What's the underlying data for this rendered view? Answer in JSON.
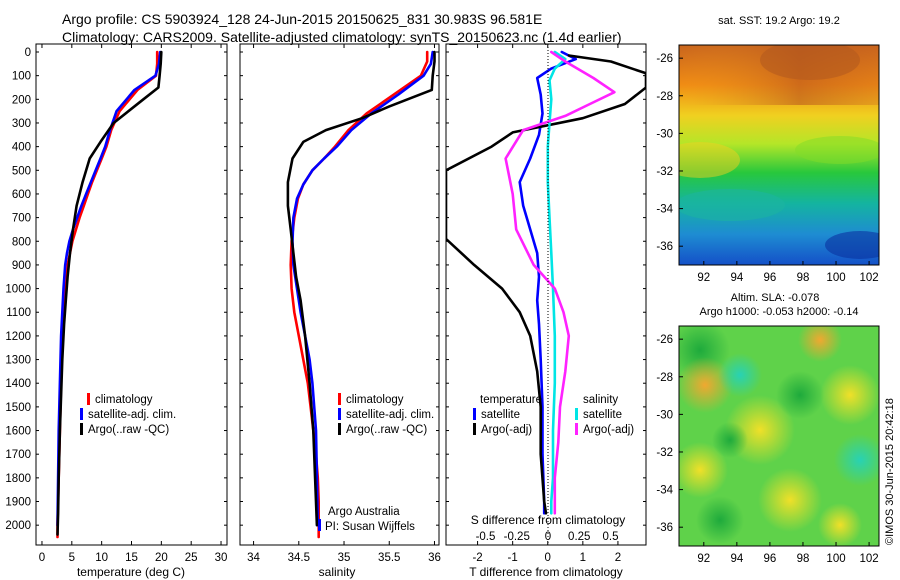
{
  "title": {
    "line1": "Argo profile: CS 5903924_128 24-Jun-2015 20150625_831 30.983S 96.581E",
    "line2": "Climatology: CARS2009. Satellite-adjusted climatology: synTS_20150623.nc (1.4d earlier)"
  },
  "colors": {
    "climatology": "#ff0000",
    "satellite": "#0000ff",
    "argo": "#000000",
    "sal_satellite": "#00e5e5",
    "sal_argo": "#ff22ff"
  },
  "depth_ticks": [
    "0",
    "100",
    "200",
    "300",
    "400",
    "500",
    "600",
    "700",
    "800",
    "900",
    "1000",
    "1100",
    "1200",
    "1300",
    "1400",
    "1500",
    "1600",
    "1700",
    "1800",
    "1900",
    "2000"
  ],
  "panels": {
    "temperature": {
      "xlabel": "temperature (deg C)",
      "xticks": [
        "0",
        "5",
        "10",
        "15",
        "20",
        "25",
        "30"
      ],
      "legend": [
        "climatology",
        "satellite-adj. clim.",
        "Argo(..raw -QC)"
      ]
    },
    "salinity": {
      "xlabel": "salinity",
      "xticks": [
        "34",
        "34.5",
        "35",
        "35.5",
        "36"
      ],
      "legend": [
        "climatology",
        "satellite-adj. clim.",
        "Argo(..raw -QC)"
      ],
      "credit1": "Argo Australia",
      "credit2": "PI: Susan Wijffels"
    },
    "difference": {
      "xlabel": "T difference from climatology",
      "xticks": [
        "-2",
        "-1",
        "0",
        "1",
        "2"
      ],
      "s_title": "S difference from climatology",
      "s_ticks": [
        "-0.5",
        "-0.25",
        "0",
        "0.25",
        "0.5"
      ],
      "legend_t_head": "temperature",
      "legend_s_head": "salinity",
      "legend_t": [
        "satellite",
        "Argo(-adj)"
      ],
      "legend_s": [
        "satellite",
        "Argo(-adj)"
      ]
    }
  },
  "maps": {
    "sst_title": "sat. SST: 19.2 Argo: 19.2",
    "sla_title1": "Altim. SLA: -0.078",
    "sla_title2": "Argo h1000: -0.053 h2000: -0.14",
    "yticks": [
      "-26",
      "-28",
      "-30",
      "-32",
      "-34",
      "-36"
    ],
    "xticks": [
      "92",
      "94",
      "96",
      "98",
      "100",
      "102"
    ],
    "stamp": "©IMOS 30-Jun-2015 20:42:18"
  },
  "chart_data": [
    {
      "type": "line",
      "title": "temperature",
      "xlabel": "temperature (deg C)",
      "ylabel": "",
      "xlim": [
        -1,
        31
      ],
      "ylim": [
        2070,
        0
      ],
      "series": [
        {
          "name": "climatology",
          "x": [
            19.3,
            19.3,
            19.1,
            16,
            13,
            11.6,
            10.8,
            10,
            9.2,
            8.4,
            7.7,
            7.0,
            6.3,
            5.7,
            5.1,
            4.7,
            4.3,
            4.0,
            3.7,
            3.4,
            3.2,
            3.0,
            2.8,
            2.6,
            2.6
          ],
          "y": [
            0,
            50,
            100,
            160,
            250,
            330,
            400,
            450,
            500,
            550,
            600,
            650,
            700,
            750,
            800,
            850,
            900,
            1000,
            1100,
            1200,
            1400,
            1600,
            1800,
            2000,
            2050
          ]
        },
        {
          "name": "satellite-adj. clim.",
          "x": [
            19.8,
            19.6,
            19,
            15.5,
            12.5,
            11.4,
            10.6,
            9.8,
            9.0,
            8.2,
            7.4,
            6.6,
            5.9,
            5.2,
            4.6,
            4.2,
            3.9,
            3.6,
            3.4,
            3.2,
            3.0,
            2.8,
            2.7,
            2.6
          ],
          "y": [
            0,
            50,
            100,
            160,
            250,
            330,
            400,
            450,
            500,
            550,
            600,
            650,
            700,
            750,
            800,
            850,
            900,
            1000,
            1100,
            1200,
            1400,
            1600,
            1800,
            2000
          ]
        },
        {
          "name": "Argo(..raw -QC)",
          "x": [
            20,
            19.9,
            19.7,
            19.5,
            17,
            12,
            9.8,
            8.0,
            6.8,
            5.8,
            5.2,
            4.7,
            4.3,
            4.0,
            3.7,
            3.4,
            3.2,
            3.0,
            2.8,
            2.7,
            2.6
          ],
          "y": [
            0,
            50,
            100,
            150,
            200,
            300,
            380,
            450,
            550,
            650,
            750,
            850,
            950,
            1050,
            1150,
            1300,
            1450,
            1600,
            1800,
            1950,
            2040
          ]
        }
      ]
    },
    {
      "type": "line",
      "title": "salinity",
      "xlabel": "salinity",
      "ylabel": "",
      "xlim": [
        33.85,
        36.05
      ],
      "ylim": [
        2070,
        0
      ],
      "series": [
        {
          "name": "climatology",
          "x": [
            35.92,
            35.92,
            35.85,
            35.55,
            35.25,
            35.05,
            34.9,
            34.78,
            34.65,
            34.55,
            34.49,
            34.45,
            34.42,
            34.41,
            34.42,
            34.45,
            34.5,
            34.55,
            34.6,
            34.63,
            34.66,
            34.69,
            34.71,
            34.72,
            34.72
          ],
          "y": [
            0,
            40,
            100,
            180,
            260,
            330,
            400,
            450,
            500,
            560,
            620,
            700,
            800,
            900,
            1000,
            1100,
            1200,
            1300,
            1400,
            1500,
            1600,
            1700,
            1800,
            1900,
            2050
          ]
        },
        {
          "name": "satellite-adj. clim.",
          "x": [
            35.98,
            35.96,
            35.88,
            35.6,
            35.3,
            35.08,
            34.92,
            34.78,
            34.65,
            34.55,
            34.48,
            34.44,
            34.43,
            34.44,
            34.48,
            34.52,
            34.57,
            34.62,
            34.65,
            34.67,
            34.69,
            34.7,
            34.71
          ],
          "y": [
            0,
            50,
            100,
            180,
            260,
            330,
            400,
            450,
            500,
            560,
            620,
            700,
            800,
            900,
            1000,
            1100,
            1200,
            1300,
            1400,
            1500,
            1600,
            1800,
            2000
          ]
        },
        {
          "name": "Argo(..raw -QC)",
          "x": [
            36.0,
            36.0,
            35.98,
            35.97,
            35.5,
            35.2,
            34.8,
            34.55,
            34.43,
            34.38,
            34.38,
            34.41,
            34.44,
            34.47,
            34.52,
            34.57,
            34.62,
            34.66,
            34.68,
            34.7
          ],
          "y": [
            0,
            40,
            100,
            160,
            230,
            280,
            330,
            380,
            450,
            550,
            650,
            750,
            850,
            950,
            1050,
            1200,
            1400,
            1600,
            1800,
            2000
          ]
        }
      ]
    },
    {
      "type": "line",
      "title": "difference from climatology",
      "xlabel": "T difference from climatology",
      "ylabel": "",
      "xlim": [
        -2.9,
        2.8
      ],
      "ylim": [
        2070,
        0
      ],
      "s_axis": {
        "label": "S difference from climatology",
        "ticks": [
          -0.5,
          -0.25,
          0,
          0.25,
          0.5
        ]
      },
      "series": [
        {
          "name": "temperature satellite",
          "x": [
            0.4,
            0.8,
            0.1,
            -0.3,
            -0.2,
            -0.15,
            -0.25,
            -0.5,
            -0.8,
            -0.7,
            -0.5,
            -0.3,
            -0.25,
            -0.3,
            -0.25,
            -0.2,
            -0.15,
            -0.15,
            -0.1,
            -0.1
          ],
          "y": [
            0,
            30,
            70,
            110,
            180,
            260,
            350,
            450,
            550,
            650,
            750,
            850,
            950,
            1050,
            1150,
            1300,
            1500,
            1700,
            1900,
            1950
          ]
        },
        {
          "name": "temperature Argo(-adj)",
          "x": [
            0.6,
            1.8,
            2.8,
            2.8,
            2.2,
            1.0,
            -1.0,
            -1.6,
            -2.9,
            -2.9,
            -2.1,
            -1.3,
            -0.8,
            -0.5,
            -0.3,
            -0.2,
            -0.2,
            -0.1,
            -0.05
          ],
          "y": [
            15,
            40,
            90,
            150,
            220,
            280,
            340,
            400,
            500,
            790,
            900,
            1000,
            1100,
            1200,
            1350,
            1500,
            1700,
            1900,
            1950
          ]
        },
        {
          "name": "salinity satellite",
          "x": [
            0.2,
            0.5,
            0.2,
            0.05,
            0.1,
            0.05,
            0.0,
            0.0,
            0.05,
            0.1,
            0.15,
            0.2,
            0.2,
            0.15,
            0.15,
            0.1,
            0.1
          ],
          "y": [
            0,
            30,
            70,
            120,
            200,
            300,
            400,
            550,
            700,
            850,
            1000,
            1200,
            1400,
            1600,
            1800,
            1900,
            1950
          ]
        },
        {
          "name": "salinity Argo(-adj)",
          "x": [
            0.1,
            0.5,
            1.3,
            1.9,
            1.2,
            0.5,
            -0.7,
            -1.2,
            -1.0,
            -0.9,
            -0.4,
            0.2,
            0.45,
            0.6,
            0.5,
            0.35,
            0.3,
            0.2,
            0.2,
            0.2
          ],
          "y": [
            0,
            40,
            110,
            170,
            220,
            270,
            330,
            450,
            600,
            750,
            900,
            1000,
            1100,
            1200,
            1350,
            1500,
            1650,
            1800,
            1900,
            1950
          ]
        }
      ]
    }
  ]
}
